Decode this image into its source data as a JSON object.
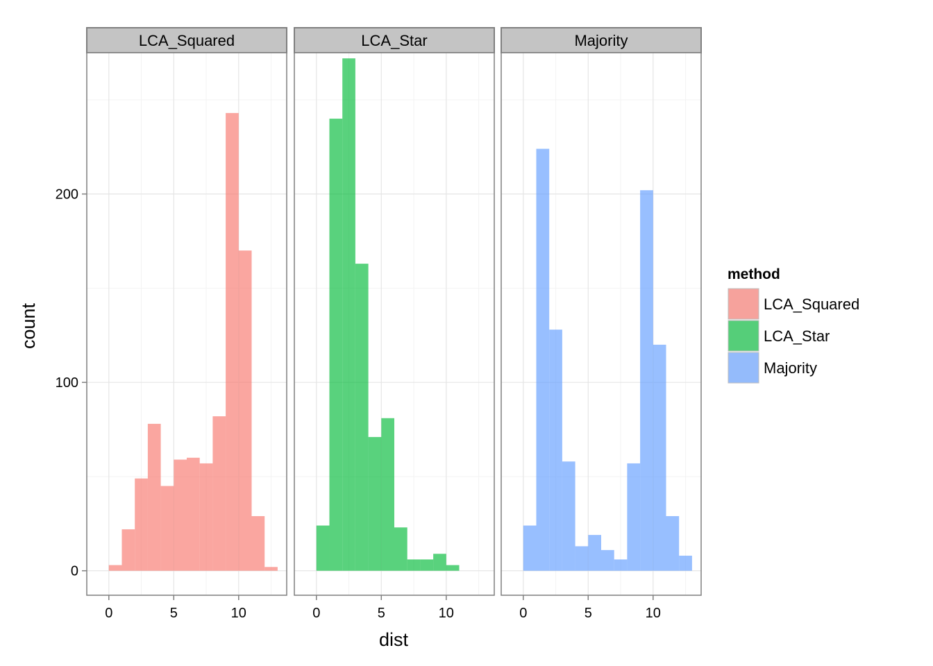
{
  "chart_data": {
    "type": "bar",
    "facet_by": "method",
    "xlabel": "dist",
    "ylabel": "count",
    "xlim": [
      -1.7,
      13.7
    ],
    "ylim": [
      -13,
      275
    ],
    "x_ticks": [
      0,
      5,
      10
    ],
    "y_ticks": [
      0,
      100,
      200
    ],
    "bin_width": 1,
    "grid": true,
    "legend": {
      "title": "method",
      "position": "right",
      "entries": [
        "LCA_Squared",
        "LCA_Star",
        "Majority"
      ]
    },
    "series": [
      {
        "name": "LCA_Squared",
        "color": "#f8766d",
        "bins": [
          {
            "x0": 0,
            "x1": 1,
            "count": 3
          },
          {
            "x0": 1,
            "x1": 2,
            "count": 22
          },
          {
            "x0": 2,
            "x1": 3,
            "count": 49
          },
          {
            "x0": 3,
            "x1": 4,
            "count": 78
          },
          {
            "x0": 4,
            "x1": 5,
            "count": 45
          },
          {
            "x0": 5,
            "x1": 6,
            "count": 59
          },
          {
            "x0": 6,
            "x1": 7,
            "count": 60
          },
          {
            "x0": 7,
            "x1": 8,
            "count": 57
          },
          {
            "x0": 8,
            "x1": 9,
            "count": 82
          },
          {
            "x0": 9,
            "x1": 10,
            "count": 243
          },
          {
            "x0": 10,
            "x1": 11,
            "count": 170
          },
          {
            "x0": 11,
            "x1": 12,
            "count": 29
          },
          {
            "x0": 12,
            "x1": 13,
            "count": 2
          }
        ]
      },
      {
        "name": "LCA_Star",
        "color": "#00ba38",
        "bins": [
          {
            "x0": 0,
            "x1": 1,
            "count": 24
          },
          {
            "x0": 1,
            "x1": 2,
            "count": 240
          },
          {
            "x0": 2,
            "x1": 3,
            "count": 272
          },
          {
            "x0": 3,
            "x1": 4,
            "count": 163
          },
          {
            "x0": 4,
            "x1": 5,
            "count": 71
          },
          {
            "x0": 5,
            "x1": 6,
            "count": 81
          },
          {
            "x0": 6,
            "x1": 7,
            "count": 23
          },
          {
            "x0": 7,
            "x1": 8,
            "count": 6
          },
          {
            "x0": 8,
            "x1": 9,
            "count": 6
          },
          {
            "x0": 9,
            "x1": 10,
            "count": 9
          },
          {
            "x0": 10,
            "x1": 11,
            "count": 3
          }
        ]
      },
      {
        "name": "Majority",
        "color": "#619cff",
        "bins": [
          {
            "x0": 0,
            "x1": 1,
            "count": 24
          },
          {
            "x0": 1,
            "x1": 2,
            "count": 224
          },
          {
            "x0": 2,
            "x1": 3,
            "count": 128
          },
          {
            "x0": 3,
            "x1": 4,
            "count": 58
          },
          {
            "x0": 4,
            "x1": 5,
            "count": 13
          },
          {
            "x0": 5,
            "x1": 6,
            "count": 19
          },
          {
            "x0": 6,
            "x1": 7,
            "count": 11
          },
          {
            "x0": 7,
            "x1": 8,
            "count": 6
          },
          {
            "x0": 8,
            "x1": 9,
            "count": 57
          },
          {
            "x0": 9,
            "x1": 10,
            "count": 202
          },
          {
            "x0": 10,
            "x1": 11,
            "count": 120
          },
          {
            "x0": 11,
            "x1": 12,
            "count": 29
          },
          {
            "x0": 12,
            "x1": 13,
            "count": 8
          }
        ]
      }
    ]
  }
}
